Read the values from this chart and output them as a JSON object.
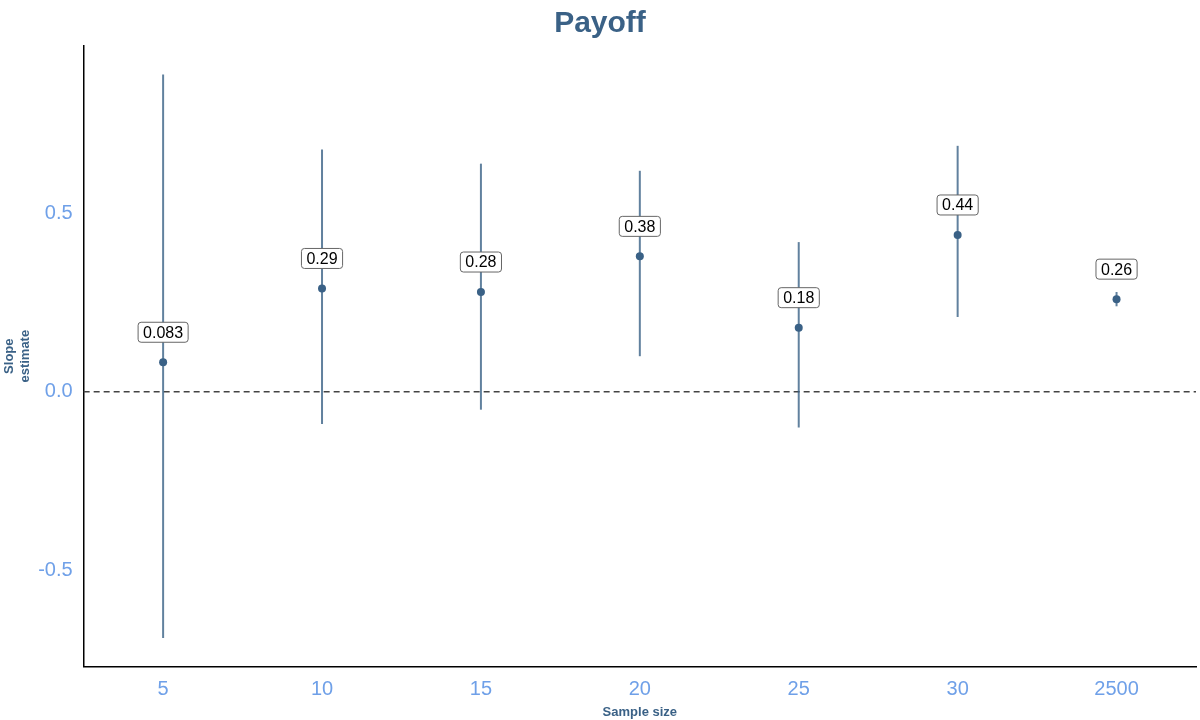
{
  "chart_data": {
    "type": "scatter",
    "title": "Payoff",
    "xlabel": "Sample size",
    "ylabel": "Slope\nestimate",
    "categories": [
      "5",
      "10",
      "15",
      "20",
      "25",
      "30",
      "2500"
    ],
    "values": [
      0.083,
      0.29,
      0.28,
      0.38,
      0.18,
      0.44,
      0.26
    ],
    "errors": [
      [
        -0.69,
        0.89
      ],
      [
        -0.09,
        0.68
      ],
      [
        -0.05,
        0.64
      ],
      [
        0.1,
        0.62
      ],
      [
        -0.1,
        0.42
      ],
      [
        0.21,
        0.69
      ],
      [
        0.24,
        0.28
      ]
    ],
    "color": "#3a6186",
    "data_labels": true,
    "marker": "circle",
    "grid": false,
    "legend": false,
    "ylim": [
      -0.77,
      0.97
    ],
    "yticks": [
      -0.5,
      {
        "value": 0,
        "label": "0.0"
      },
      0.5
    ],
    "ref_lines": [
      {
        "axis": "y",
        "value": 0,
        "line_style": "dashed",
        "color": "#444444"
      }
    ]
  }
}
